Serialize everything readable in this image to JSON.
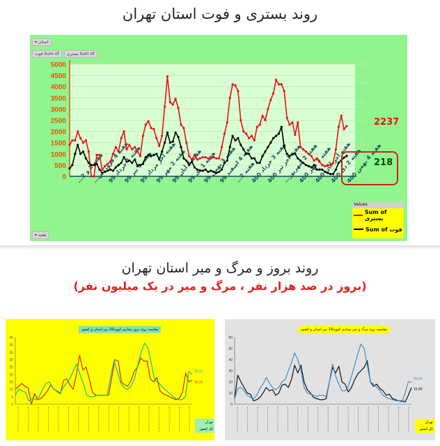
{
  "titles": {
    "main_top": "روند بستری و فوت استان تهران",
    "main_bottom": "روند بروز و مرگ و میر استان تهران",
    "subtitle_bottom": "(بروز در صد هزار نفر ، مرگ و میر در یک میلیون نفر)"
  },
  "pivot_buttons": {
    "province_filter": "استان",
    "field_deaths": "Sum of فوت",
    "field_hosp": "Sum of بستری",
    "axis_field": "هفته"
  },
  "colors": {
    "hosp": "#e81010",
    "deaths": "#000000",
    "panel": "#90f58e",
    "plot": "#d8ffd2"
  },
  "chart_data": [
    {
      "type": "line",
      "title": "روند بستری و فوت استان تهران",
      "ylim": [
        0,
        5000
      ],
      "yticks": [
        0,
        500,
        1000,
        1500,
        2000,
        2500,
        3000,
        3500,
        4000,
        4500,
        5000
      ],
      "y2lim": [
        0,
        1200
      ],
      "y2ticks": [
        0,
        200,
        400,
        600,
        800,
        1000,
        1200
      ],
      "x_tick_labels": [
        "هفته 1 و 2...",
        "هفته 4 فروردین...",
        "هفته 1 خرداد 99",
        "هفته 3 تیر 99",
        "هفته آخر مرداد 99",
        "هفته 2 مهر 99",
        "هفته 4 آبان 99",
        "هفته 1 دی 99",
        "هفته 3 بهمن 99",
        "هفته 4 اسفند 99",
        "هفته 2...",
        "هفته 3 خرداد 400",
        "هفته آخر تیر 400",
        "هفته 2 شهریور...",
        "هفته 3 مهر 400",
        "هفته آخر آبان 400",
        "هفته 2 دی 400",
        "هفته 4 بهمن 400"
      ],
      "legend_title": "Values",
      "legend_position": "bottom-right",
      "series": [
        {
          "name": "Sum of بستری",
          "axis": "left",
          "last_label": "2237",
          "values": [
            1400,
            1600,
            1600,
            2000,
            1700,
            1500,
            1600,
            1100,
            0,
            0,
            950,
            950,
            300,
            450,
            550,
            650,
            1000,
            1300,
            1100,
            1700,
            2000,
            1200,
            1400,
            1200,
            1300,
            1100,
            900,
            1800,
            2300,
            2450,
            2150,
            2100,
            1700,
            1350,
            1800,
            3100,
            4450,
            3300,
            3200,
            3450,
            3050,
            2300,
            2150,
            1500,
            900,
            750,
            950,
            750,
            800,
            850,
            850,
            800,
            800,
            850,
            800,
            800,
            1300,
            1900,
            2400,
            3500,
            4100,
            4050,
            3800,
            2500,
            2000,
            1900,
            1700,
            1800,
            1600,
            2200,
            2300,
            2700,
            2500,
            3000,
            3400,
            3700,
            4300,
            4100,
            4100,
            3800,
            2600,
            2300,
            2400,
            1850,
            2400,
            1300,
            1200,
            1100,
            1000,
            900,
            700,
            800,
            650,
            500,
            450,
            500,
            500,
            600,
            1200,
            2200,
            2700,
            2100,
            2237
          ]
        },
        {
          "name": "Sum of فوت",
          "axis": "right",
          "last_label": "218",
          "values": [
            84,
            120,
            240,
            336,
            240,
            264,
            192,
            144,
            120,
            120,
            132,
            72,
            36,
            48,
            60,
            72,
            60,
            96,
            120,
            144,
            204,
            156,
            168,
            144,
            180,
            108,
            120,
            132,
            204,
            228,
            216,
            228,
            240,
            180,
            264,
            360,
            468,
            360,
            372,
            468,
            420,
            312,
            192,
            168,
            120,
            156,
            96,
            72,
            60,
            60,
            72,
            48,
            60,
            48,
            36,
            48,
            72,
            144,
            168,
            312,
            432,
            384,
            408,
            336,
            288,
            240,
            240,
            192,
            192,
            144,
            144,
            216,
            264,
            312,
            360,
            408,
            432,
            456,
            528,
            312,
            240,
            216,
            240,
            240,
            192,
            168,
            144,
            120,
            108,
            96,
            120,
            72,
            72,
            72,
            48,
            36,
            24,
            24,
            72,
            144,
            168,
            200,
            218
          ]
        }
      ]
    },
    {
      "type": "line",
      "title": "مقایسه روند بروز بیماری کووید19 بین استان و کشور",
      "ylim": [
        0,
        45
      ],
      "yticks": [
        0,
        5,
        10,
        15,
        20,
        25,
        30,
        35,
        40,
        45
      ],
      "legend_position": "bottom-right",
      "series": [
        {
          "name": "تهران",
          "color": "#d03000",
          "last_label": "16.21",
          "values": [
            10,
            12,
            14,
            12,
            11,
            0,
            7,
            3,
            4,
            6,
            9,
            13,
            10,
            9,
            7,
            16,
            17,
            13,
            10,
            20,
            33,
            23,
            25,
            17,
            8,
            6,
            6,
            6,
            6,
            6,
            18,
            30,
            29,
            15,
            13,
            12,
            16,
            22,
            25,
            31,
            29,
            29,
            17,
            15,
            18,
            9,
            7,
            6,
            5,
            4,
            3,
            4,
            8,
            21,
            15,
            16
          ]
        },
        {
          "name": "کل کشور",
          "color": "#10c0a0",
          "last_label": "19.81",
          "values": [
            6,
            10,
            9,
            8,
            2,
            4,
            3,
            5,
            10,
            14,
            15,
            11,
            9,
            7,
            11,
            14,
            17,
            22,
            27,
            20,
            14,
            6,
            5,
            5,
            6,
            6,
            6,
            6,
            18,
            29,
            22,
            14,
            11,
            10,
            12,
            17,
            26,
            35,
            41,
            38,
            27,
            16,
            15,
            12,
            10,
            8,
            6,
            4,
            3,
            3,
            5,
            22,
            20
          ]
        }
      ]
    },
    {
      "type": "line",
      "title": "مقایسه روند مرگ و میر بیماری کووید19 بین استان و کشور",
      "ylim": [
        0,
        60
      ],
      "yticks": [
        0,
        10,
        20,
        30,
        40,
        50,
        60
      ],
      "legend_position": "bottom-right",
      "series": [
        {
          "name": "تهران",
          "color": "#111111",
          "last_label": "15.80",
          "values": [
            5,
            26,
            20,
            15,
            10,
            9,
            3,
            4,
            6,
            10,
            15,
            12,
            13,
            8,
            10,
            17,
            18,
            15,
            22,
            35,
            28,
            35,
            20,
            13,
            10,
            6,
            5,
            4,
            4,
            5,
            20,
            33,
            28,
            34,
            20,
            18,
            11,
            15,
            22,
            27,
            30,
            33,
            39,
            20,
            16,
            18,
            14,
            12,
            8,
            9,
            5,
            4,
            3,
            3,
            2,
            8,
            15
          ]
        },
        {
          "name": "کل کشور",
          "color": "#3a8fd0",
          "last_label": "20.00",
          "values": [
            5,
            14,
            15,
            12,
            8,
            6,
            5,
            8,
            14,
            18,
            24,
            19,
            15,
            13,
            15,
            20,
            22,
            30,
            37,
            46,
            40,
            30,
            15,
            10,
            9,
            8,
            7,
            8,
            8,
            7,
            20,
            36,
            25,
            18,
            12,
            12,
            16,
            25,
            35,
            45,
            54,
            50,
            35,
            20,
            18,
            15,
            12,
            8,
            6,
            5,
            4,
            3,
            3,
            2,
            10,
            20,
            20
          ]
        }
      ]
    }
  ]
}
